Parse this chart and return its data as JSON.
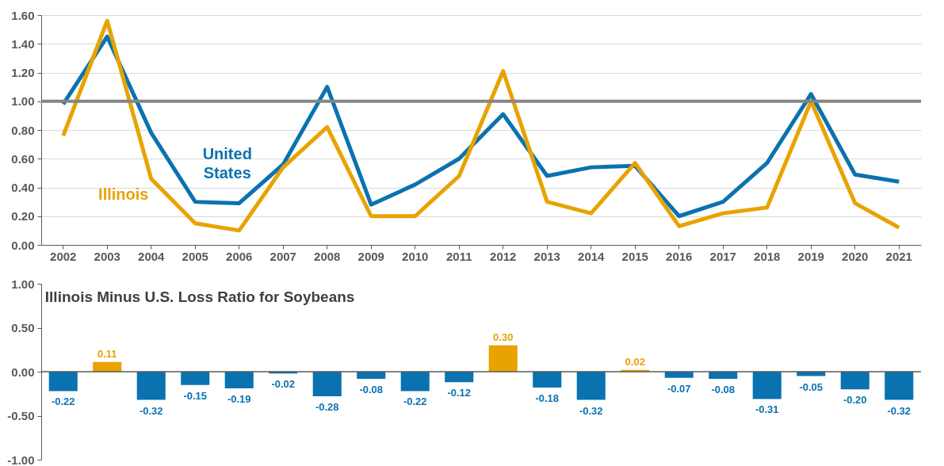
{
  "chart_data": [
    {
      "type": "line",
      "categories": [
        "2002",
        "2003",
        "2004",
        "2005",
        "2006",
        "2007",
        "2008",
        "2009",
        "2010",
        "2011",
        "2012",
        "2013",
        "2014",
        "2015",
        "2016",
        "2017",
        "2018",
        "2019",
        "2020",
        "2021"
      ],
      "series": [
        {
          "name": "United States",
          "color": "#0a72b0",
          "values": [
            0.98,
            1.45,
            0.78,
            0.3,
            0.29,
            0.56,
            1.1,
            0.28,
            0.42,
            0.6,
            0.91,
            0.48,
            0.54,
            0.55,
            0.2,
            0.3,
            0.57,
            1.05,
            0.49,
            0.44
          ]
        },
        {
          "name": "Illinois",
          "color": "#e8a300",
          "values": [
            0.76,
            1.56,
            0.46,
            0.15,
            0.1,
            0.54,
            0.82,
            0.2,
            0.2,
            0.48,
            1.21,
            0.3,
            0.22,
            0.57,
            0.13,
            0.22,
            0.26,
            1.0,
            0.29,
            0.12
          ]
        }
      ],
      "ylim": [
        0,
        1.6
      ],
      "yticks": [
        {
          "value": 0,
          "label": "0.00"
        },
        {
          "value": 0.2,
          "label": "0.20"
        },
        {
          "value": 0.4,
          "label": "0.40"
        },
        {
          "value": 0.6,
          "label": "0.60"
        },
        {
          "value": 0.8,
          "label": "0.80"
        },
        {
          "value": 1,
          "label": "1.00"
        },
        {
          "value": 1.2,
          "label": "1.20"
        },
        {
          "value": 1.4,
          "label": "1.40"
        },
        {
          "value": 1.6,
          "label": "1.60"
        }
      ],
      "ref_lines": [
        {
          "axis": "y",
          "value": 1,
          "color": "#858585"
        }
      ],
      "grid": "y"
    },
    {
      "type": "bar",
      "title": "Illinois Minus U.S. Loss Ratio for Soybeans",
      "categories": [
        "2002",
        "2003",
        "2004",
        "2005",
        "2006",
        "2007",
        "2008",
        "2009",
        "2010",
        "2011",
        "2012",
        "2013",
        "2014",
        "2015",
        "2016",
        "2017",
        "2018",
        "2019",
        "2020",
        "2021"
      ],
      "values": [
        -0.22,
        0.11,
        -0.32,
        -0.15,
        -0.19,
        -0.02,
        -0.28,
        -0.08,
        -0.22,
        -0.12,
        0.3,
        -0.18,
        -0.32,
        0.02,
        -0.07,
        -0.08,
        -0.31,
        -0.05,
        -0.2,
        -0.32
      ],
      "colors": [
        "#0a72b0",
        "#e8a300",
        "#0a72b0",
        "#0a72b0",
        "#0a72b0",
        "#0a72b0",
        "#0a72b0",
        "#0a72b0",
        "#0a72b0",
        "#0a72b0",
        "#e8a300",
        "#0a72b0",
        "#0a72b0",
        "#e8a300",
        "#0a72b0",
        "#0a72b0",
        "#0a72b0",
        "#0a72b0",
        "#0a72b0",
        "#0a72b0"
      ],
      "ylim": [
        -1,
        1
      ],
      "yticks": [
        {
          "value": -1,
          "label": "-1.00"
        },
        {
          "value": -0.5,
          "label": "-0.50"
        },
        {
          "value": 0,
          "label": "0.00"
        },
        {
          "value": 0.5,
          "label": "0.50"
        },
        {
          "value": 1,
          "label": "1.00"
        }
      ],
      "ref_lines": [
        {
          "axis": "y",
          "value": 0,
          "color": "#595959"
        }
      ],
      "value_labels": [
        "-0.22",
        "0.11",
        "-0.32",
        "-0.15",
        "-0.19",
        "-0.02",
        "-0.28",
        "-0.08",
        "-0.22",
        "-0.12",
        "0.30",
        "-0.18",
        "-0.32",
        "0.02",
        "-0.07",
        "-0.08",
        "-0.31",
        "-0.05",
        "-0.20",
        "-0.32"
      ],
      "tick_labels": "y"
    }
  ]
}
